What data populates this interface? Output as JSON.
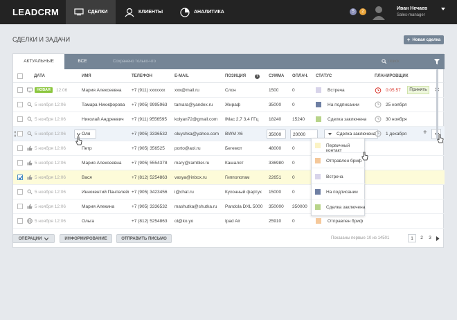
{
  "app": {
    "logo": "LEADCRM"
  },
  "nav": [
    {
      "label": "СДЕЛКИ"
    },
    {
      "label": "КЛИЕНТЫ"
    },
    {
      "label": "АНАЛИТИКА"
    }
  ],
  "badges": [
    "5",
    "2"
  ],
  "user": {
    "name": "Иван Нечаев",
    "role": "Sales-manager"
  },
  "page": {
    "title": "СДЕЛКИ И ЗАДАЧИ",
    "new_button": "Новая сделка"
  },
  "tabs": {
    "current": "АКТУАЛЬНЫЕ",
    "all": "ВСЕ",
    "saved": "Сохранено только-что",
    "search_placeholder": "Поиск"
  },
  "columns": {
    "date": "ДАТА",
    "name": "ИМЯ",
    "phone": "ТЕЛЕФОН",
    "email": "E-MAIL",
    "position": "ПОЗИЦИЯ",
    "sum": "СУММА",
    "paid": "ОПЛАЧ.",
    "status": "СТАТУС",
    "planner": "ПЛАНИРОВЩИК"
  },
  "rows": [
    {
      "date": "12:06",
      "badge": "НОВАЯ",
      "name": "Мария Алексеевна",
      "phone": "+7 (911) xxxxxxx",
      "email": "xxx@mail.ru",
      "position": "Слон",
      "sum": "1500",
      "paid": "0",
      "status": "Встреча",
      "status_color": "#d8d4ea",
      "plan": "0:05:57",
      "plan_action": "Принять"
    },
    {
      "date": "5 ноября 12:06",
      "name": "Тамара Никифорова",
      "phone": "+7 (905) 9995963",
      "email": "tamara@yandex.ru",
      "position": "Жираф",
      "sum": "35000",
      "paid": "0",
      "status": "На подписании",
      "status_color": "#6e7fa3",
      "plan": "25 ноября"
    },
    {
      "date": "5 ноября 12:06",
      "name": "Николай Андреевич",
      "phone": "+7 (911) 9556595",
      "email": "kolyan72@gmail.com",
      "position": "IMac 2,7 3,4 ГГц",
      "sum": "18240",
      "paid": "15240",
      "status": "Сделка заключена",
      "status_color": "#b8d48a",
      "plan": "30 ноября"
    },
    {
      "date": "5 ноября 12:06",
      "name": "Оля",
      "phone": "+7 (905) 3336532",
      "email": "oluyshka@yahoo.com",
      "position": "BWM X6",
      "sum": "35000",
      "paid": "20000",
      "status": "Сделка заключена",
      "status_color": "#b8d48a",
      "plan": "1 декабря"
    },
    {
      "date": "5 ноября 12:06",
      "name": "Петр",
      "phone": "+7 (905) 356525",
      "email": "porto@aol.ru",
      "position": "Бегемот",
      "sum": "48000",
      "paid": "0",
      "status": "",
      "status_color": ""
    },
    {
      "date": "5 ноября 12:06",
      "name": "Мария Алексеевна",
      "phone": "+7 (905) 5554378",
      "email": "mary@rambler.ru",
      "position": "Кашалот",
      "sum": "336980",
      "paid": "0",
      "status": "",
      "status_color": ""
    },
    {
      "date": "5 ноября 12:06",
      "name": "Вася",
      "phone": "+7 (812) 5254863",
      "email": "vasya@inbox.ru",
      "position": "Гиппопотам",
      "sum": "22651",
      "paid": "0",
      "status": "",
      "status_color": ""
    },
    {
      "date": "5 ноября 12:06",
      "name": "Иннокентий Пантелеймонович",
      "phone": "+7 (905) 3423456",
      "email": "i@chat.ru",
      "position": "Кухонный фартук",
      "sum": "15000",
      "paid": "0",
      "status": "",
      "status_color": ""
    },
    {
      "date": "5 ноября 12:06",
      "name": "Мария Алекина",
      "phone": "+7 (905) 3336532",
      "email": "mashutka@shutka.ru",
      "position": "Pandola DXL 5000",
      "sum": "350000",
      "paid": "350000",
      "status": "",
      "status_color": ""
    },
    {
      "date": "5 ноября 12:06",
      "name": "Ольга",
      "phone": "+7 (812) 5254863",
      "email": "ol@ko.yo",
      "position": "Ipad Air",
      "sum": "25910",
      "paid": "0",
      "status": "Отправлен бриф",
      "status_color": "#f5c89a"
    }
  ],
  "dropdown": [
    {
      "label": "Первичный контакт",
      "color": "#fbf3c4"
    },
    {
      "label": "Отправлен бриф",
      "color": "#f5c89a"
    },
    {
      "label": "Встреча",
      "color": "#d8d4ea"
    },
    {
      "label": "На подписании",
      "color": "#6e7fa3"
    },
    {
      "label": "Сделка заключена",
      "color": "#b8d48a"
    }
  ],
  "footer": {
    "operations": "ОПЕРАЦИИ",
    "inform": "ИНФОРМИРОВАНИЕ",
    "send": "ОТПРАВИТЬ ПИСЬМО",
    "shown": "Показаны первые 10 из 14501",
    "pages": [
      "1",
      "2",
      "3"
    ]
  },
  "colors": {
    "accent": "#758596",
    "topbar": "#232323",
    "new_badge": "#8cc63f"
  }
}
